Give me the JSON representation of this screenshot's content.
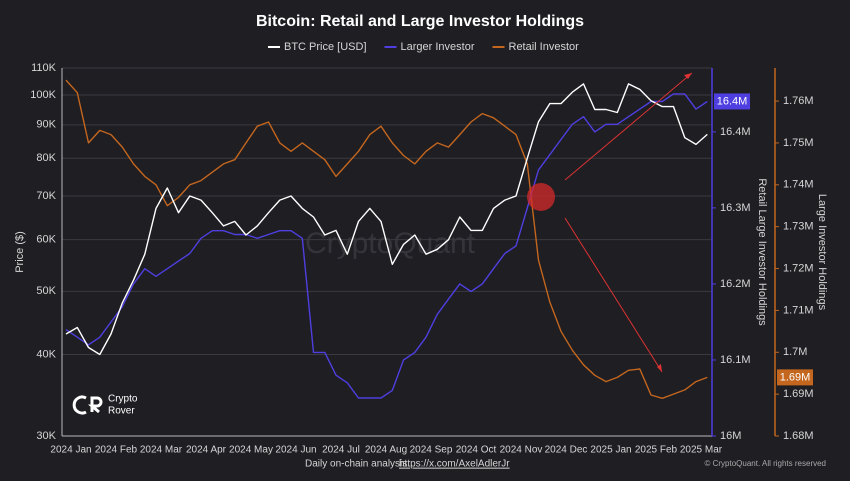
{
  "chart_data": {
    "type": "line",
    "title": "Bitcoin: Retail and Large Investor Holdings",
    "ylabel": "Price ($)",
    "y2label": "Retail Large Investor Holdings",
    "y3label": "Large Investor Holdings",
    "watermark": "CryptoQuant",
    "logo_line1": "Crypto",
    "logo_line2": "Rover",
    "footer_text": "Daily on-chain analysis:",
    "footer_link": "https://x.com/AxelAdlerJr",
    "copyright": "© CryptoQuant. All rights reserved",
    "log_y": true,
    "grid": true,
    "legend": "top",
    "categories": [
      "2024 Jan",
      null,
      null,
      null,
      "2024 Feb",
      null,
      null,
      null,
      "2024 Mar",
      null,
      null,
      null,
      "2024 Apr",
      null,
      null,
      null,
      "2024 May",
      null,
      null,
      null,
      "2024 Jun",
      null,
      null,
      null,
      "2024 Jul",
      null,
      null,
      null,
      "2024 Aug",
      null,
      null,
      null,
      "2024 Sep",
      null,
      null,
      null,
      "2024 Oct",
      null,
      null,
      null,
      "2024 Nov",
      null,
      null,
      null,
      "2024 Dec",
      null,
      null,
      null,
      "2025 Jan",
      null,
      null,
      null,
      "2025 Feb",
      null,
      null,
      null,
      "2025 Mar",
      null
    ],
    "ylim": [
      30000,
      110000
    ],
    "yticks": [
      {
        "value": 30000,
        "label": "30K"
      },
      {
        "value": 40000,
        "label": "40K"
      },
      {
        "value": 50000,
        "label": "50K"
      },
      {
        "value": 60000,
        "label": "60K"
      },
      {
        "value": 70000,
        "label": "70K"
      },
      {
        "value": 80000,
        "label": "80K"
      },
      {
        "value": 90000,
        "label": "90K"
      },
      {
        "value": 100000,
        "label": "100K"
      },
      {
        "value": 110000,
        "label": "110K"
      }
    ],
    "y2lim": [
      16,
      16.484
    ],
    "y2ticks": [
      {
        "value": 16,
        "label": "16M"
      },
      {
        "value": 16.1,
        "label": "16.1M"
      },
      {
        "value": 16.2,
        "label": "16.2M"
      },
      {
        "value": 16.3,
        "label": "16.3M"
      },
      {
        "value": 16.4,
        "label": "16.4M"
      }
    ],
    "y3lim": [
      1.68,
      1.7679
    ],
    "y3ticks": [
      {
        "value": 1.68,
        "label": "1.68M"
      },
      {
        "value": 1.69,
        "label": "1.69M"
      },
      {
        "value": 1.7,
        "label": "1.7M"
      },
      {
        "value": 1.71,
        "label": "1.71M"
      },
      {
        "value": 1.72,
        "label": "1.72M"
      },
      {
        "value": 1.73,
        "label": "1.73M"
      },
      {
        "value": 1.74,
        "label": "1.74M"
      },
      {
        "value": 1.75,
        "label": "1.75M"
      },
      {
        "value": 1.76,
        "label": "1.76M"
      }
    ],
    "series": [
      {
        "name": "BTC Price [USD]",
        "color": "#ffffff",
        "axis": "y",
        "values": [
          43000,
          44000,
          41000,
          40000,
          43000,
          48000,
          52000,
          57000,
          67000,
          72000,
          66000,
          70000,
          69000,
          66000,
          63000,
          64000,
          61000,
          63000,
          66000,
          69000,
          70000,
          67000,
          65000,
          61000,
          62000,
          57000,
          64000,
          67000,
          64000,
          55000,
          59000,
          61000,
          57000,
          58000,
          60000,
          65000,
          62000,
          62000,
          67000,
          69000,
          70000,
          80000,
          91000,
          97000,
          97000,
          101000,
          104000,
          95000,
          95000,
          94000,
          104000,
          102000,
          98000,
          96000,
          96000,
          86000,
          84000,
          87000
        ]
      },
      {
        "name": "Larger Investor",
        "color": "#4f3fe0",
        "axis": "y2",
        "end_label": "16.4M",
        "values": [
          16.14,
          16.13,
          16.12,
          16.13,
          16.15,
          16.17,
          16.2,
          16.22,
          16.21,
          16.22,
          16.23,
          16.24,
          16.26,
          16.27,
          16.27,
          16.265,
          16.265,
          16.26,
          16.265,
          16.27,
          16.27,
          16.26,
          16.11,
          16.11,
          16.08,
          16.07,
          16.05,
          16.05,
          16.05,
          16.06,
          16.1,
          16.11,
          16.13,
          16.16,
          16.18,
          16.2,
          16.19,
          16.2,
          16.22,
          16.24,
          16.25,
          16.3,
          16.35,
          16.37,
          16.39,
          16.41,
          16.42,
          16.4,
          16.41,
          16.41,
          16.42,
          16.43,
          16.44,
          16.44,
          16.45,
          16.45,
          16.43,
          16.44
        ]
      },
      {
        "name": "Retail Investor",
        "color": "#c4661e",
        "axis": "y3",
        "end_label": "1.69M",
        "values": [
          1.765,
          1.762,
          1.75,
          1.753,
          1.752,
          1.749,
          1.745,
          1.742,
          1.74,
          1.735,
          1.737,
          1.74,
          1.741,
          1.743,
          1.745,
          1.746,
          1.75,
          1.754,
          1.755,
          1.75,
          1.748,
          1.75,
          1.748,
          1.746,
          1.742,
          1.745,
          1.748,
          1.752,
          1.754,
          1.75,
          1.747,
          1.745,
          1.748,
          1.75,
          1.749,
          1.752,
          1.755,
          1.757,
          1.756,
          1.754,
          1.752,
          1.745,
          1.722,
          1.712,
          1.705,
          1.7005,
          1.697,
          1.6945,
          1.693,
          1.694,
          1.6957,
          1.696,
          1.6898,
          1.689,
          1.69,
          1.691,
          1.693,
          1.694
        ]
      }
    ]
  }
}
